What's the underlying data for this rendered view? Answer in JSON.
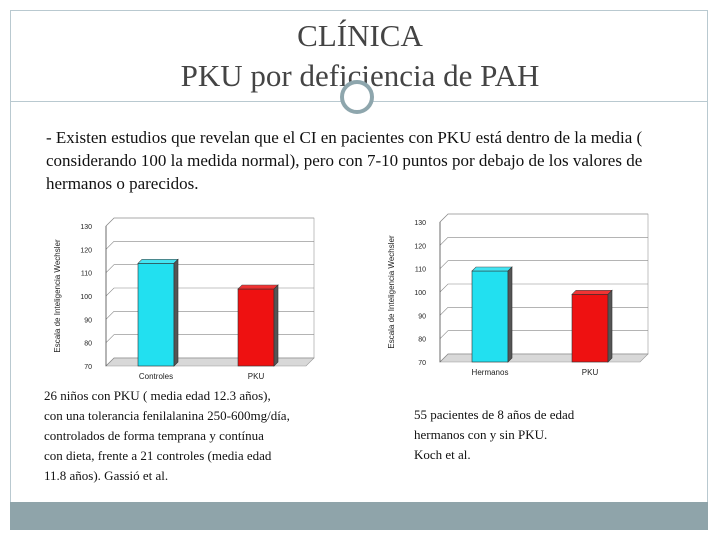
{
  "slide": {
    "title_line1": "CLÍNICA",
    "title_line2": "PKU por deficiencia de PAH",
    "bullet_text": "- Existen estudios que revelan que el CI en pacientes con PKU está dentro de la media ( considerando 100 la medida normal), pero con 7-10 puntos por debajo de los valores de hermanos o parecidos.",
    "caption_left_lines": [
      "26 niños con PKU ( media edad 12.3 años),",
      "con una tolerancia fenilalanina 250-600mg/día,",
      "controlados  de forma temprana y contínua",
      "con dieta, frente a 21 controles (media edad",
      "11.8 años). Gassió et al."
    ],
    "caption_right_lines": [
      "55 pacientes de 8 años de edad",
      "hermanos con y sin PKU.",
      "Koch et al."
    ]
  },
  "colors": {
    "accent_frame": "#b9c9d0",
    "footer": "#8fa4aa",
    "bar_cyan": "#22e0f0",
    "bar_red": "#ee1111"
  },
  "chart_data": [
    {
      "type": "bar",
      "title": "",
      "xlabel": "",
      "ylabel": "Escala de Inteligencia Wechsler",
      "categories": [
        "Controles",
        "PKU"
      ],
      "values": [
        114,
        103
      ],
      "ylim": [
        70,
        130
      ],
      "yticks": [
        70,
        80,
        90,
        100,
        110,
        120,
        130
      ],
      "bar_colors": [
        "#22e0f0",
        "#ee1111"
      ],
      "grid": true
    },
    {
      "type": "bar",
      "title": "",
      "xlabel": "",
      "ylabel": "Escala de Inteligencia Wechsler",
      "categories": [
        "Hermanos",
        "PKU"
      ],
      "values": [
        109,
        99
      ],
      "ylim": [
        70,
        130
      ],
      "yticks": [
        70,
        80,
        90,
        100,
        110,
        120,
        130
      ],
      "bar_colors": [
        "#22e0f0",
        "#ee1111"
      ],
      "grid": true
    }
  ]
}
